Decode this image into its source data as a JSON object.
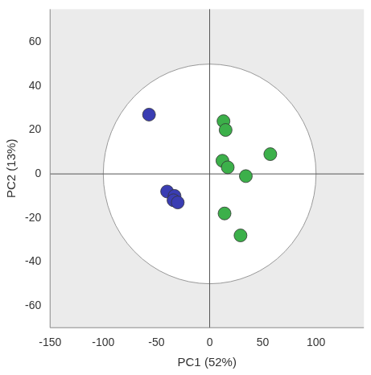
{
  "chart_data": {
    "type": "scatter",
    "x_label": "PC1 (52%)",
    "y_label": "PC2 (13%)",
    "xlim": [
      -150,
      145
    ],
    "xticks": [
      -150,
      -100,
      -50,
      0,
      50,
      100
    ],
    "ylim": [
      -70,
      75
    ],
    "yticks": [
      -60,
      -40,
      -20,
      0,
      20,
      40,
      60
    ],
    "grid": false,
    "marker": "circle",
    "ellipse": {
      "x_radius": 100,
      "y_radius": 50
    },
    "series": [
      {
        "color": "#3a3db3",
        "x": [
          -57,
          -40,
          -33,
          -34,
          -30
        ],
        "y": [
          27,
          -8,
          -10,
          -12,
          -13
        ]
      },
      {
        "color": "#3cb04a",
        "x": [
          13,
          15,
          12,
          17,
          34,
          57,
          14,
          29
        ],
        "y": [
          24,
          20,
          6,
          3,
          -1,
          9,
          -18,
          -28
        ]
      }
    ]
  }
}
